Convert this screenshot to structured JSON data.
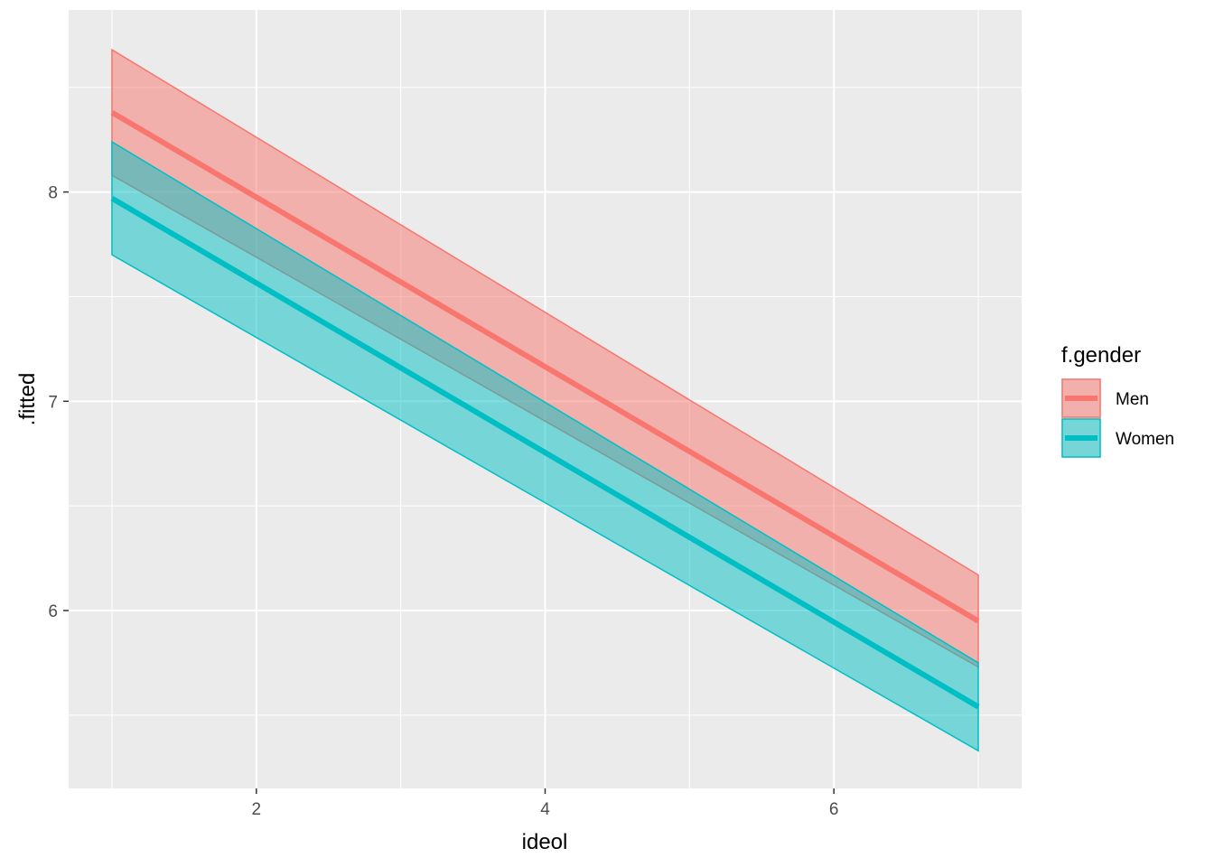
{
  "chart_data": {
    "type": "line",
    "xlabel": "ideol",
    "ylabel": ".fitted",
    "xlim": [
      0.7,
      7.3
    ],
    "ylim": [
      5.15,
      8.87
    ],
    "x_ticks": [
      2,
      4,
      6
    ],
    "y_ticks": [
      6,
      7,
      8
    ],
    "x_minor_ticks": [
      1,
      3,
      5,
      7
    ],
    "y_minor_ticks": [
      5.5,
      6.5,
      7.5,
      8.5
    ],
    "grid": true,
    "panel_background": "#ebebeb",
    "legend": {
      "title": "f.gender",
      "position": "right"
    },
    "series": [
      {
        "name": "Men",
        "color": "#f8766d",
        "x": [
          1,
          7
        ],
        "y": [
          8.38,
          5.95
        ],
        "lower": [
          8.08,
          5.73
        ],
        "upper": [
          8.68,
          6.17
        ]
      },
      {
        "name": "Women",
        "color": "#00bfc4",
        "x": [
          1,
          7
        ],
        "y": [
          7.97,
          5.54
        ],
        "lower": [
          7.7,
          5.33
        ],
        "upper": [
          8.24,
          5.75
        ]
      }
    ]
  }
}
